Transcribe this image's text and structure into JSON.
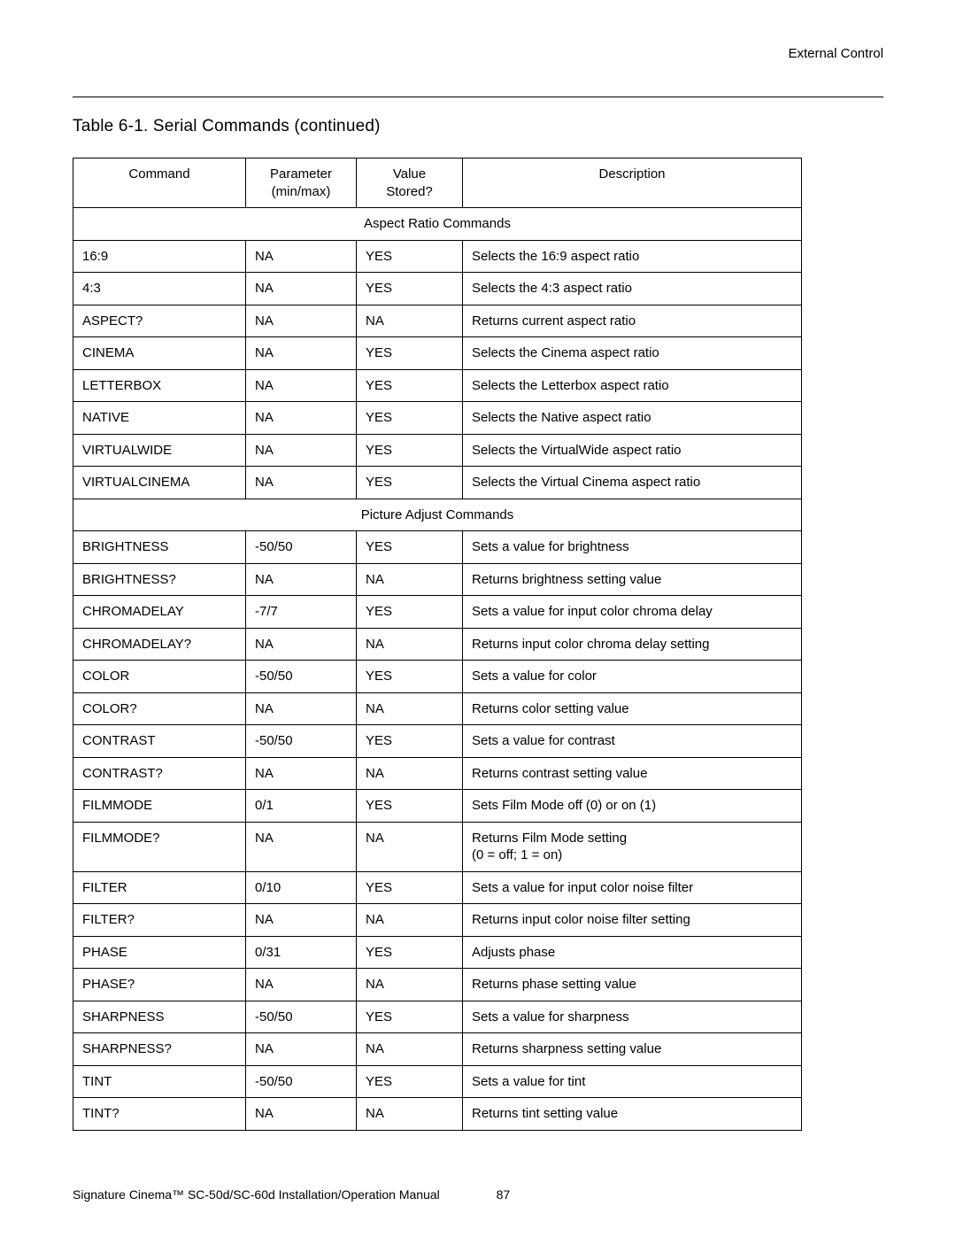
{
  "header": {
    "right": "External Control"
  },
  "title": "Table 6-1. Serial Commands (continued)",
  "columns": {
    "command": "Command",
    "parameter": "Parameter\n(min/max)",
    "value": "Value\nStored?",
    "description": "Description"
  },
  "sections": [
    {
      "label": "Aspect Ratio Commands",
      "rows": [
        {
          "cmd": "16:9",
          "param": "NA",
          "value": "YES",
          "desc": "Selects the 16:9 aspect ratio"
        },
        {
          "cmd": "4:3",
          "param": "NA",
          "value": "YES",
          "desc": "Selects the 4:3 aspect ratio"
        },
        {
          "cmd": "ASPECT?",
          "param": "NA",
          "value": "NA",
          "desc": "Returns current aspect ratio"
        },
        {
          "cmd": "CINEMA",
          "param": "NA",
          "value": "YES",
          "desc": "Selects the Cinema aspect ratio"
        },
        {
          "cmd": "LETTERBOX",
          "param": "NA",
          "value": "YES",
          "desc": "Selects the Letterbox aspect ratio"
        },
        {
          "cmd": "NATIVE",
          "param": "NA",
          "value": "YES",
          "desc": "Selects the Native aspect ratio"
        },
        {
          "cmd": "VIRTUALWIDE",
          "param": "NA",
          "value": "YES",
          "desc": "Selects the VirtualWide aspect ratio"
        },
        {
          "cmd": "VIRTUALCINEMA",
          "param": "NA",
          "value": "YES",
          "desc": "Selects the Virtual Cinema aspect ratio"
        }
      ]
    },
    {
      "label": "Picture Adjust Commands",
      "rows": [
        {
          "cmd": "BRIGHTNESS",
          "param": "-50/50",
          "value": "YES",
          "desc": "Sets a value for brightness"
        },
        {
          "cmd": "BRIGHTNESS?",
          "param": "NA",
          "value": "NA",
          "desc": "Returns brightness setting value"
        },
        {
          "cmd": "CHROMADELAY",
          "param": "-7/7",
          "value": "YES",
          "desc": "Sets a value for input color chroma delay"
        },
        {
          "cmd": "CHROMADELAY?",
          "param": "NA",
          "value": "NA",
          "desc": "Returns input color chroma delay setting"
        },
        {
          "cmd": "COLOR",
          "param": "-50/50",
          "value": "YES",
          "desc": "Sets a value for color"
        },
        {
          "cmd": "COLOR?",
          "param": "NA",
          "value": "NA",
          "desc": "Returns color setting value"
        },
        {
          "cmd": "CONTRAST",
          "param": "-50/50",
          "value": "YES",
          "desc": "Sets a value for contrast"
        },
        {
          "cmd": "CONTRAST?",
          "param": "NA",
          "value": "NA",
          "desc": "Returns contrast setting value"
        },
        {
          "cmd": "FILMMODE",
          "param": "0/1",
          "value": "YES",
          "desc": "Sets Film Mode off (0) or on (1)"
        },
        {
          "cmd": "FILMMODE?",
          "param": "NA",
          "value": "NA",
          "desc": "Returns Film Mode setting\n(0 = off; 1 = on)"
        },
        {
          "cmd": "FILTER",
          "param": "0/10",
          "value": "YES",
          "desc": "Sets a value for input color noise filter"
        },
        {
          "cmd": "FILTER?",
          "param": "NA",
          "value": "NA",
          "desc": "Returns input color noise filter setting"
        },
        {
          "cmd": "PHASE",
          "param": "0/31",
          "value": "YES",
          "desc": "Adjusts phase"
        },
        {
          "cmd": "PHASE?",
          "param": "NA",
          "value": "NA",
          "desc": "Returns phase setting value"
        },
        {
          "cmd": "SHARPNESS",
          "param": "-50/50",
          "value": "YES",
          "desc": "Sets a value for sharpness"
        },
        {
          "cmd": "SHARPNESS?",
          "param": "NA",
          "value": "NA",
          "desc": "Returns sharpness setting value"
        },
        {
          "cmd": "TINT",
          "param": "-50/50",
          "value": "YES",
          "desc": "Sets a value for tint"
        },
        {
          "cmd": "TINT?",
          "param": "NA",
          "value": "NA",
          "desc": "Returns tint setting value"
        }
      ]
    }
  ],
  "footer": {
    "text": "Signature Cinema™ SC-50d/SC-60d Installation/Operation Manual",
    "page": "87"
  }
}
